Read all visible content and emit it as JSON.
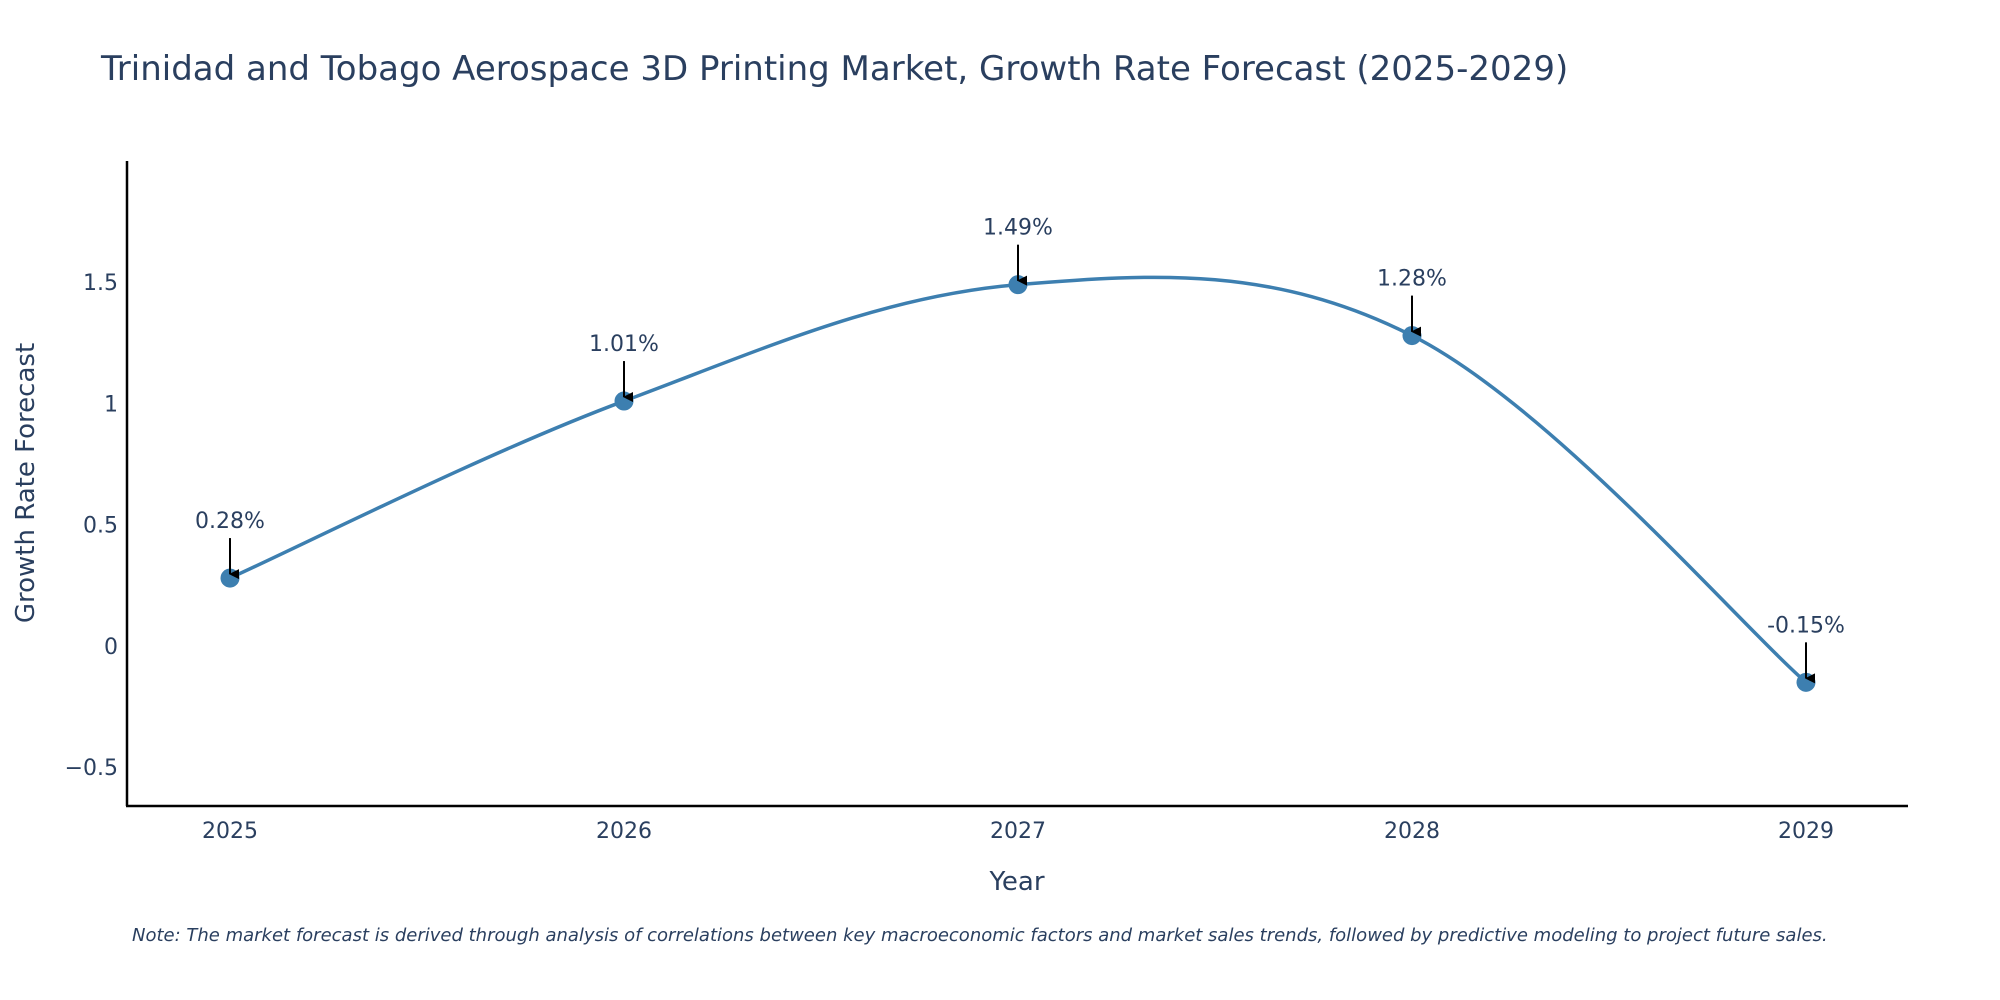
{
  "chart_data": {
    "type": "line",
    "title": "Trinidad and Tobago Aerospace 3D Printing Market, Growth Rate Forecast (2025-2029)",
    "xlabel": "Year",
    "ylabel": "Growth Rate Forecast",
    "categories": [
      "2025",
      "2026",
      "2027",
      "2028",
      "2029"
    ],
    "series": [
      {
        "name": "Growth Rate Forecast",
        "values": [
          0.28,
          1.01,
          1.49,
          1.28,
          -0.15
        ],
        "color": "#3d7fb0",
        "line_shape": "spline"
      }
    ],
    "data_labels": [
      "0.28%",
      "1.01%",
      "1.49%",
      "1.28%",
      "-0.15%"
    ],
    "yticks": [
      -0.5,
      0,
      0.5,
      1,
      1.5
    ],
    "ytick_labels": [
      "−0.5",
      "0",
      "0.5",
      "1",
      "1.5"
    ],
    "ylim": [
      -0.66,
      2.0
    ],
    "grid": false,
    "note": "Note: The market forecast is derived through analysis of correlations between key macroeconomic factors and market sales trends, followed by predictive modeling to project future sales."
  }
}
